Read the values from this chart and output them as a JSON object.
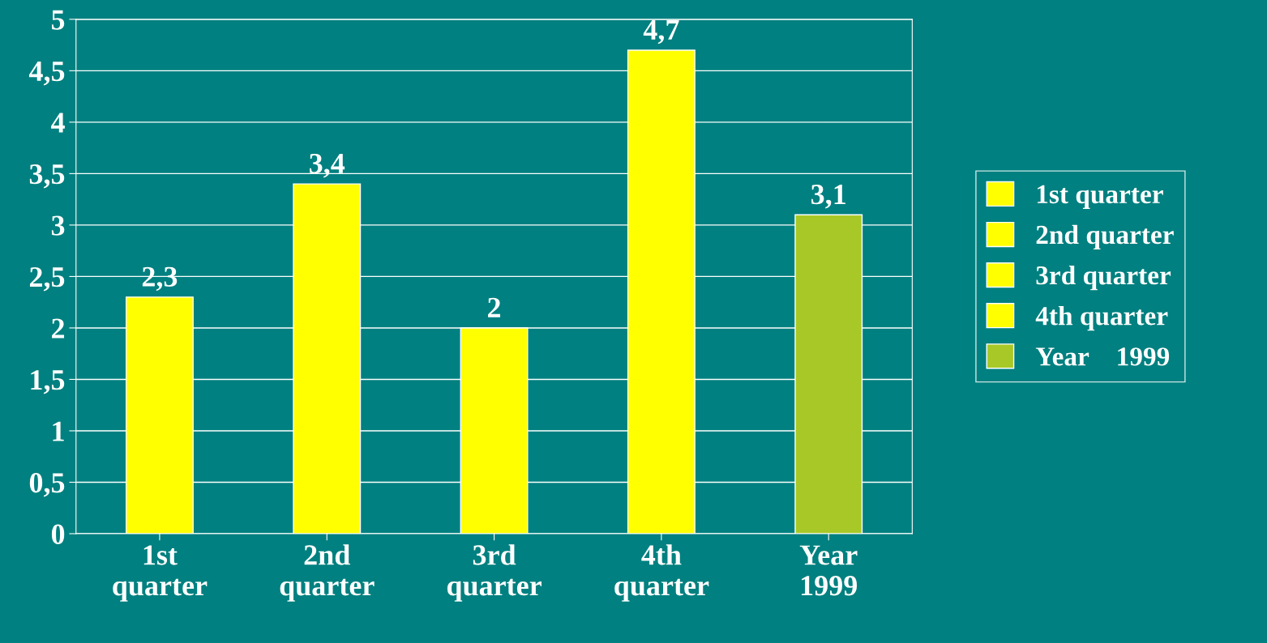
{
  "chart_data": {
    "type": "bar",
    "categories": [
      "1st\nquarter",
      "2nd\nquarter",
      "3rd\nquarter",
      "4th\nquarter",
      "Year\n1999"
    ],
    "series": [
      {
        "name": "1st quarter",
        "color": "#ffff00",
        "values": [
          2.3,
          null,
          null,
          null,
          null
        ],
        "value_labels": [
          "2,3",
          null,
          null,
          null,
          null
        ]
      },
      {
        "name": "2nd quarter",
        "color": "#ffff00",
        "values": [
          null,
          3.4,
          null,
          null,
          null
        ],
        "value_labels": [
          null,
          "3,4",
          null,
          null,
          null
        ]
      },
      {
        "name": "3rd quarter",
        "color": "#ffff00",
        "values": [
          null,
          null,
          2,
          null,
          null
        ],
        "value_labels": [
          null,
          null,
          "2",
          null,
          null
        ]
      },
      {
        "name": "4th quarter",
        "color": "#ffff00",
        "values": [
          null,
          null,
          null,
          4.7,
          null
        ],
        "value_labels": [
          null,
          null,
          null,
          "4,7",
          null
        ]
      },
      {
        "name": "Year    1999",
        "color": "#a8c828",
        "values": [
          null,
          null,
          null,
          null,
          3.1
        ],
        "value_labels": [
          null,
          null,
          null,
          null,
          "3,1"
        ]
      }
    ],
    "ylim": [
      0,
      5
    ],
    "yticks": [
      0,
      {
        "value": 0.5,
        "label": "0,5"
      },
      1,
      {
        "value": 1.5,
        "label": "1,5"
      },
      2,
      {
        "value": 2.5,
        "label": "2,5"
      },
      3,
      {
        "value": 3.5,
        "label": "3,5"
      },
      4,
      {
        "value": 4.5,
        "label": "4,5"
      },
      5
    ],
    "grid": "y",
    "legend": "right"
  }
}
